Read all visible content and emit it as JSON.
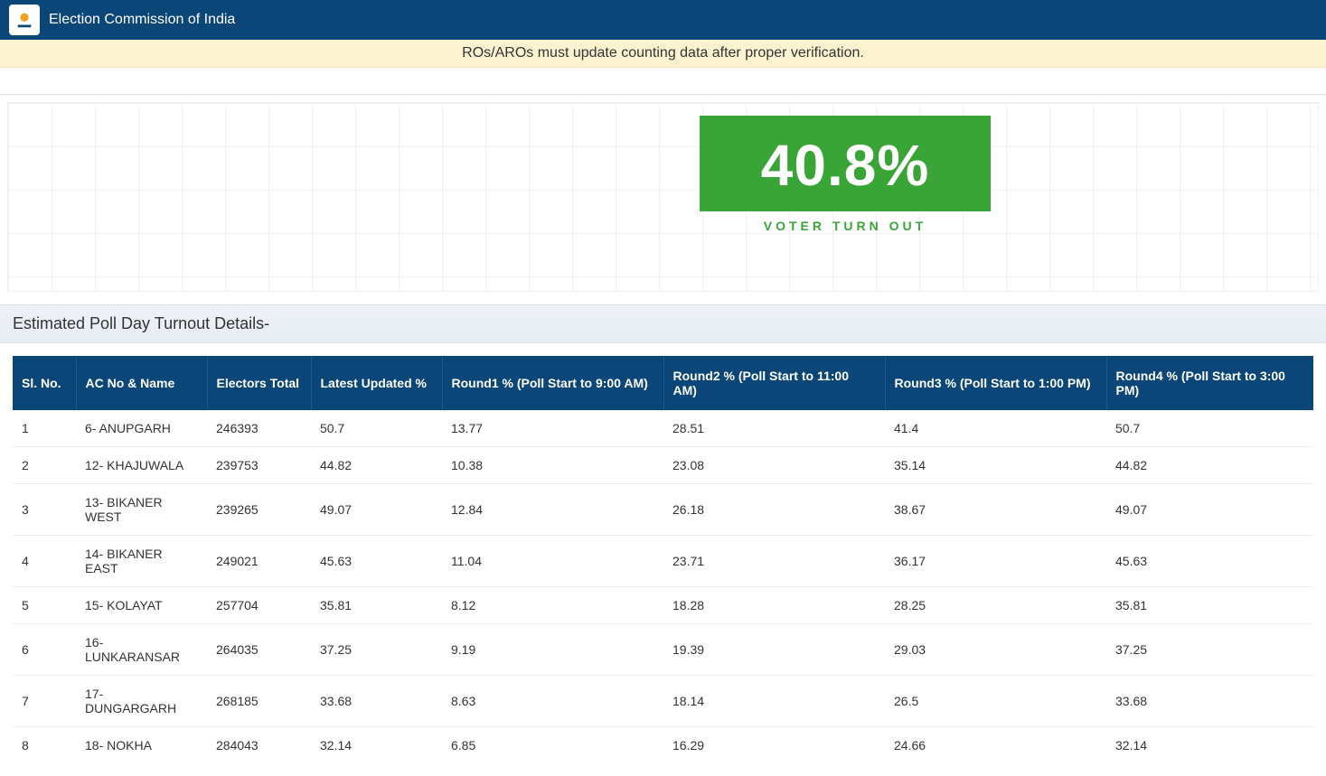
{
  "header": {
    "title": "Election Commission of India",
    "notice": "ROs/AROs must update counting data after proper verification."
  },
  "turnout": {
    "value": "40.8%",
    "label": "VOTER TURN OUT",
    "box_color": "#3aa537"
  },
  "section": {
    "title": "Estimated Poll Day Turnout Details-"
  },
  "table": {
    "columns": [
      "Sl. No.",
      "AC No & Name",
      "Electors Total",
      "Latest Updated %",
      "Round1 % (Poll Start to 9:00 AM)",
      "Round2 % (Poll Start to 11:00 AM)",
      "Round3 % (Poll Start to 1:00 PM)",
      "Round4 % (Poll Start to 3:00 PM)"
    ],
    "rows": [
      [
        "1",
        "6- ANUPGARH",
        "246393",
        "50.7",
        "13.77",
        "28.51",
        "41.4",
        "50.7"
      ],
      [
        "2",
        "12- KHAJUWALA",
        "239753",
        "44.82",
        "10.38",
        "23.08",
        "35.14",
        "44.82"
      ],
      [
        "3",
        "13- BIKANER WEST",
        "239265",
        "49.07",
        "12.84",
        "26.18",
        "38.67",
        "49.07"
      ],
      [
        "4",
        "14- BIKANER EAST",
        "249021",
        "45.63",
        "11.04",
        "23.71",
        "36.17",
        "45.63"
      ],
      [
        "5",
        "15- KOLAYAT",
        "257704",
        "35.81",
        "8.12",
        "18.28",
        "28.25",
        "35.81"
      ],
      [
        "6",
        "16- LUNKARANSAR",
        "264035",
        "37.25",
        "9.19",
        "19.39",
        "29.03",
        "37.25"
      ],
      [
        "7",
        "17- DUNGARGARH",
        "268185",
        "33.68",
        "8.63",
        "18.14",
        "26.5",
        "33.68"
      ],
      [
        "8",
        "18- NOKHA",
        "284043",
        "32.14",
        "6.85",
        "16.29",
        "24.66",
        "32.14"
      ]
    ]
  },
  "colors": {
    "brand": "#0b4678",
    "notice_bg": "#fdf3d0",
    "accent_green": "#3aa537"
  }
}
